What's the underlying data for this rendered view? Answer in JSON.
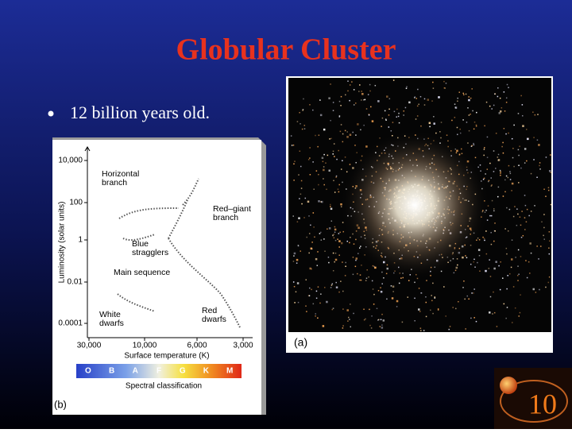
{
  "title": "Globular Cluster",
  "bullets": [
    "12 billion years old."
  ],
  "figure_b": {
    "y_axis_label": "Luminosity (solar units)",
    "y_ticks": [
      "10,000",
      "100",
      "1",
      "0.01",
      "0.0001"
    ],
    "x_ticks": [
      "30,000",
      "10,000",
      "6,000",
      "3,000"
    ],
    "x_axis_label": "Surface temperature (K)",
    "spectral_classes": [
      "O",
      "B",
      "A",
      "F",
      "G",
      "K",
      "M"
    ],
    "spectral_label": "Spectral classification",
    "annotations": [
      {
        "lines": [
          "Horizontal",
          "branch"
        ]
      },
      {
        "lines": [
          "Red–giant",
          "branch"
        ]
      },
      {
        "lines": [
          "Blue",
          "stragglers"
        ]
      },
      {
        "lines": [
          "Main sequence"
        ]
      },
      {
        "lines": [
          "White",
          "dwarfs"
        ]
      },
      {
        "lines": [
          "Red",
          "dwarfs"
        ]
      }
    ],
    "caption": "(b)"
  },
  "figure_a": {
    "caption": "(a)"
  },
  "slide_number": "10"
}
